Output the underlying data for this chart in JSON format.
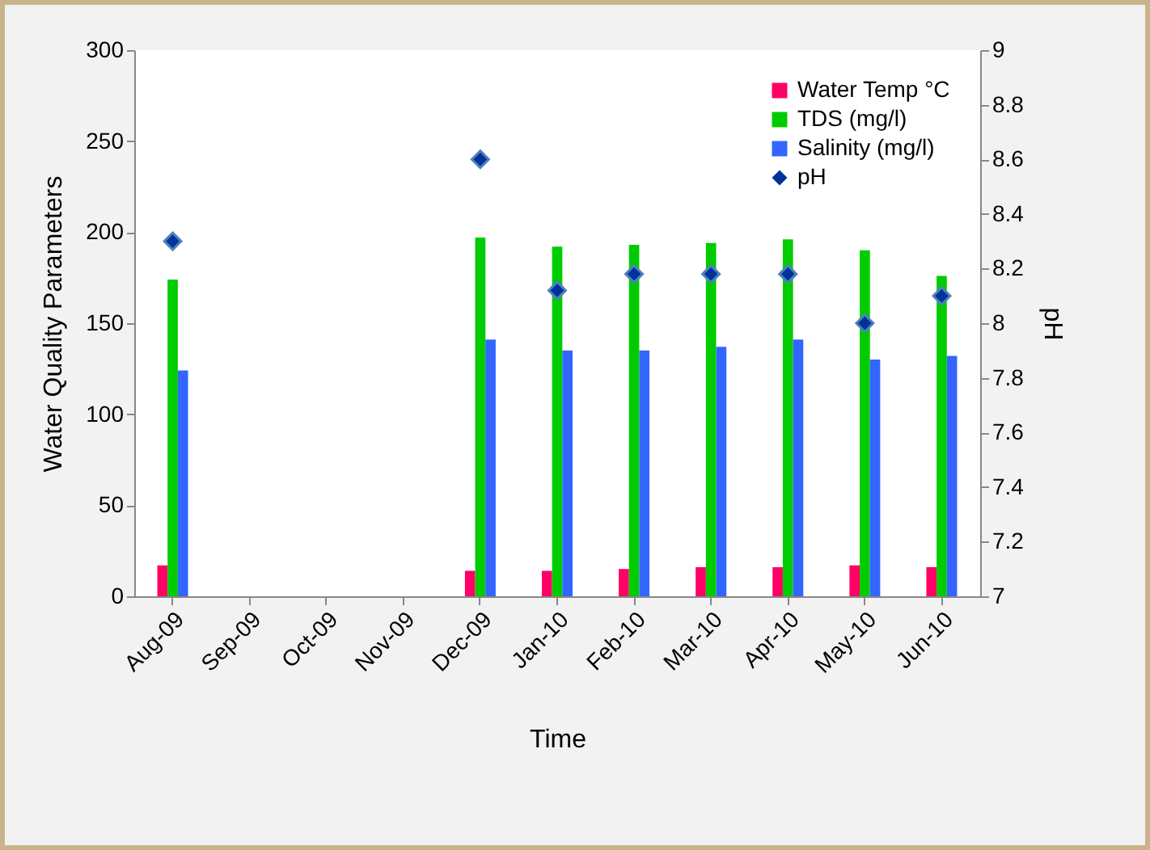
{
  "chart_data": {
    "type": "bar",
    "xlabel": "Time",
    "ylabel": "Water Quality Parameters",
    "y2label": "pH",
    "categories": [
      "Aug-09",
      "Sep-09",
      "Oct-09",
      "Nov-09",
      "Dec-09",
      "Jan-10",
      "Feb-10",
      "Mar-10",
      "Apr-10",
      "May-10",
      "Jun-10"
    ],
    "series": [
      {
        "name": "Water Temp °C",
        "color": "#ff0066",
        "values": [
          17,
          null,
          null,
          null,
          14,
          14,
          15,
          16,
          16,
          17,
          16
        ]
      },
      {
        "name": "TDS (mg/l)",
        "color": "#00cc00",
        "values": [
          174,
          null,
          null,
          null,
          197,
          192,
          193,
          194,
          196,
          190,
          176
        ]
      },
      {
        "name": "Salinity (mg/l)",
        "color": "#3366ff",
        "values": [
          124,
          null,
          null,
          null,
          141,
          135,
          135,
          137,
          141,
          130,
          132
        ]
      },
      {
        "name": "pH",
        "color": "#003399",
        "type": "scatter",
        "axis": "y2",
        "marker": "diamond",
        "values": [
          8.3,
          null,
          null,
          null,
          8.6,
          8.12,
          8.18,
          8.18,
          8.18,
          8.0,
          8.1
        ]
      }
    ],
    "ylim": [
      0,
      300
    ],
    "yticks": [
      0,
      50,
      100,
      150,
      200,
      250,
      300
    ],
    "y2lim": [
      7,
      9
    ],
    "y2ticks": [
      7,
      7.2,
      7.4,
      7.6,
      7.8,
      8,
      8.2,
      8.4,
      8.6,
      8.8,
      9
    ],
    "grid": false,
    "legend": "top right"
  }
}
